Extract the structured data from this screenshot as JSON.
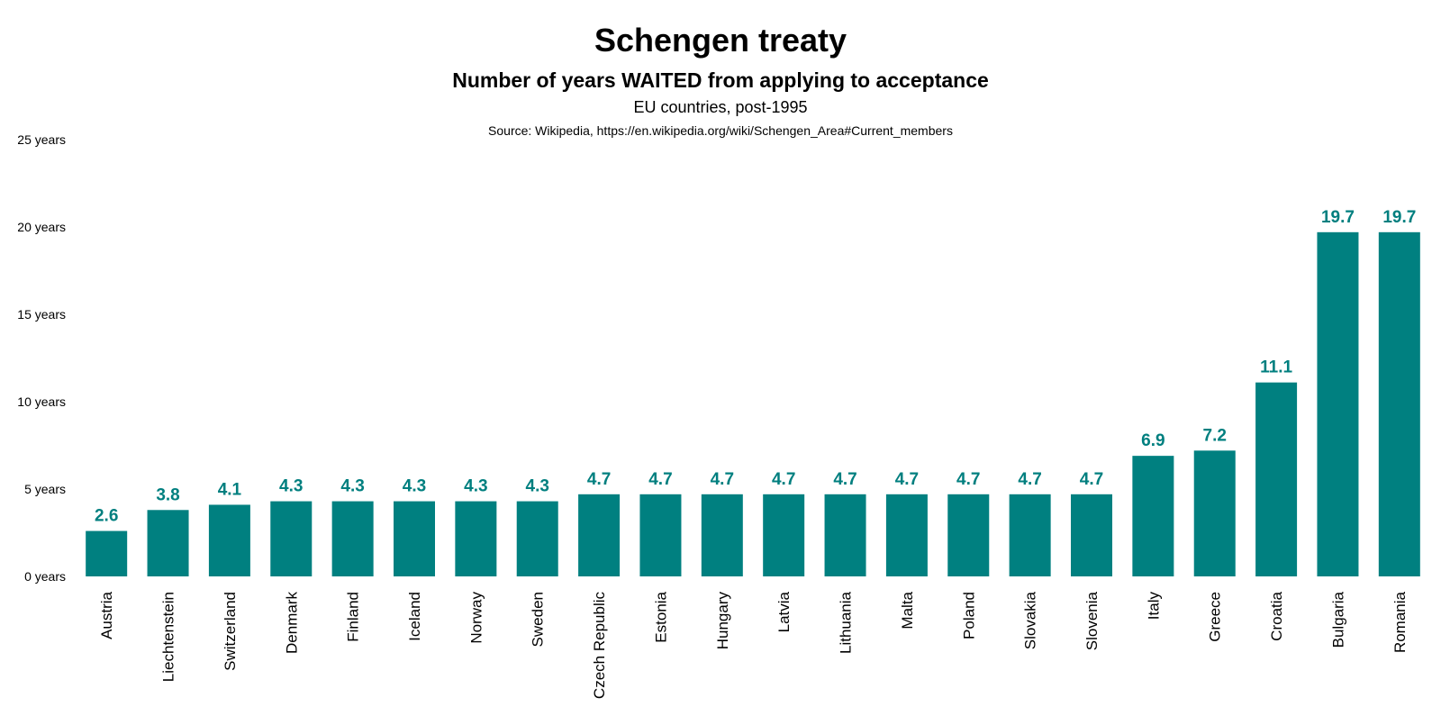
{
  "chart_data": {
    "type": "bar",
    "title": "Schengen treaty",
    "subtitle": "Number of years WAITED from applying to acceptance",
    "subtitle2": "EU countries, post-1995",
    "source": "Source: Wikipedia, https://en.wikipedia.org/wiki/Schengen_Area#Current_members",
    "categories": [
      "Austria",
      "Liechtenstein",
      "Switzerland",
      "Denmark",
      "Finland",
      "Iceland",
      "Norway",
      "Sweden",
      "Czech Republic",
      "Estonia",
      "Hungary",
      "Latvia",
      "Lithuania",
      "Malta",
      "Poland",
      "Slovakia",
      "Slovenia",
      "Italy",
      "Greece",
      "Croatia",
      "Bulgaria",
      "Romania"
    ],
    "values": [
      2.6,
      3.8,
      4.1,
      4.3,
      4.3,
      4.3,
      4.3,
      4.3,
      4.7,
      4.7,
      4.7,
      4.7,
      4.7,
      4.7,
      4.7,
      4.7,
      4.7,
      6.9,
      7.2,
      11.1,
      19.7,
      19.7
    ],
    "data_labels": [
      "2.6",
      "3.8",
      "4.1",
      "4.3",
      "4.3",
      "4.3",
      "4.3",
      "4.3",
      "4.7",
      "4.7",
      "4.7",
      "4.7",
      "4.7",
      "4.7",
      "4.7",
      "4.7",
      "4.7",
      "6.9",
      "7.2",
      "11.1",
      "19.7",
      "19.7"
    ],
    "y_ticks": [
      {
        "value": 0,
        "label": "0 years"
      },
      {
        "value": 5,
        "label": "5 years"
      },
      {
        "value": 10,
        "label": "10 years"
      },
      {
        "value": 15,
        "label": "15 years"
      },
      {
        "value": 20,
        "label": "20 years"
      },
      {
        "value": 25,
        "label": "25 years"
      }
    ],
    "ylim": [
      0,
      25
    ],
    "grid": false,
    "legend": "none",
    "colors": {
      "bar": "#008080",
      "label": "#007F7F",
      "text": "#000000"
    }
  }
}
